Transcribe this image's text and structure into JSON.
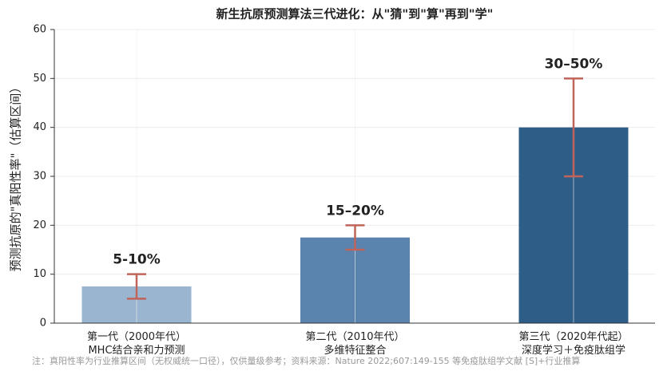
{
  "chart_data": {
    "type": "bar",
    "title": "新生抗原预测算法三代进化：从\"猜\"到\"算\"再到\"学\"",
    "y_label": "预测抗原的\"真阳性率\"（估算区间）",
    "categories": [
      "第一代（2000年代）\nMHC结合亲和力预测",
      "第二代（2010年代）\n多维特征整合",
      "第三代（2020年代起）\n深度学习＋免疫肽组学"
    ],
    "values": [
      7.5,
      17.5,
      40
    ],
    "errors": [
      2.5,
      2.5,
      10
    ],
    "colors": [
      "#9ab5d0",
      "#5a83ae",
      "#2e5d87"
    ],
    "error_color": "#c0645a",
    "annotations": [
      "5-10%",
      "15–20%",
      "30–50%"
    ],
    "ylim": [
      0,
      60
    ],
    "yticks": [
      0,
      10,
      20,
      30,
      40,
      50,
      60
    ],
    "grid": true,
    "footnote": "注：真阳性率为行业推算区间（无权威统一口径），仅供量级参考；资料来源：Nature 2022;607:149-155 等免疫肽组学文献 [S]+行业推算"
  }
}
